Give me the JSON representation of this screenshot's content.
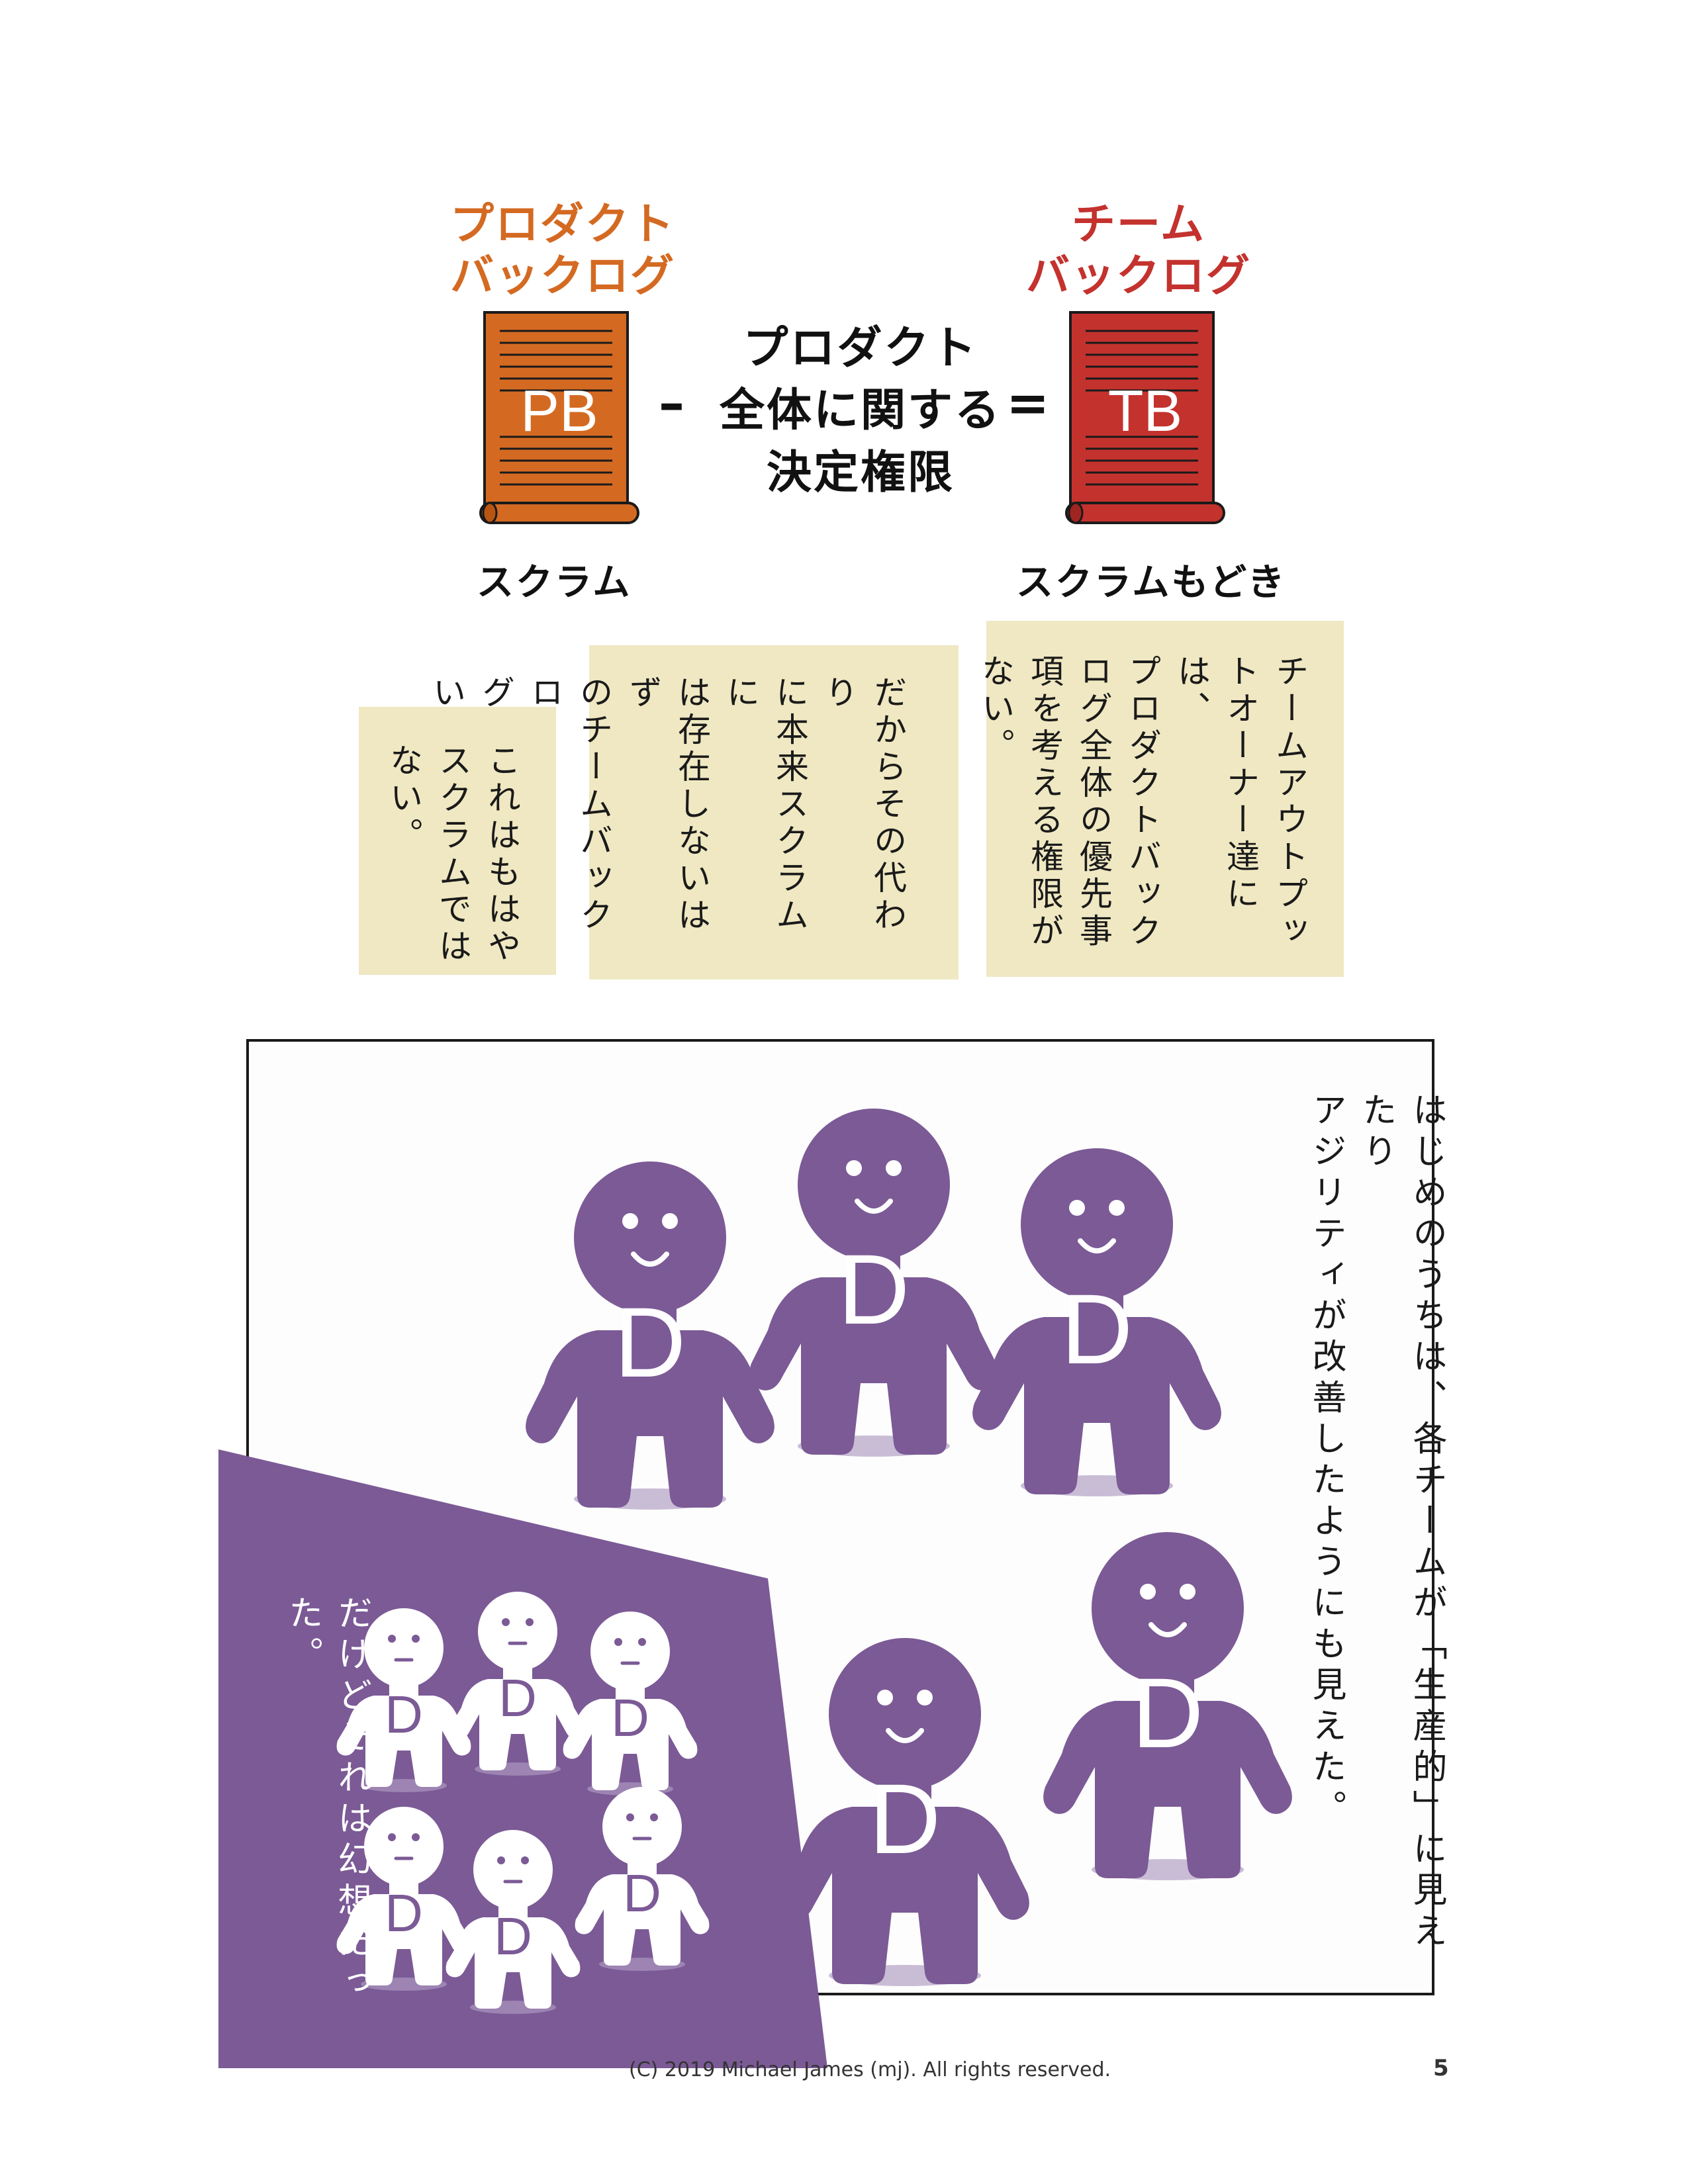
{
  "page": {
    "left_item": {
      "heading": "プロダクト\nバックログ",
      "scroll_label": "PB",
      "caption": "スクラム",
      "color": "#d46a22"
    },
    "right_item": {
      "heading": "チーム\nバックログ",
      "scroll_label": "TB",
      "caption": "スクラムもどき",
      "color": "#c4322e"
    },
    "formula": {
      "minus": "–",
      "middle_text": "プロダクト\n全体に関する\n決定権限",
      "equals": "="
    },
    "notes": [
      {
        "text": "チームアウトプッ\nトオーナー達には、\nプロダクトバック\nログ全体の優先事\n項を考える権限が\nない。"
      },
      {
        "text": "だからその代わり\nに本来スクラムに\nは存在しないはず\nのチームバックロ\nグを作るしかない。"
      },
      {
        "text": "これはもはや\nスクラムでは\nない。"
      }
    ],
    "panel": {
      "narration": "はじめのうちは、各チームが「生産的」に見えたり\nアジリティが改善したようにも見えた。",
      "figure_letter": "D",
      "figure_color": "#7b5a96"
    },
    "inset": {
      "narration": "だけどそれは幻想だった。",
      "figure_letter": "D",
      "background_color": "#7b5a96"
    },
    "footer": {
      "copyright": "(C) 2019 Michael James (mj). All rights reserved.",
      "page_number": "5"
    }
  }
}
